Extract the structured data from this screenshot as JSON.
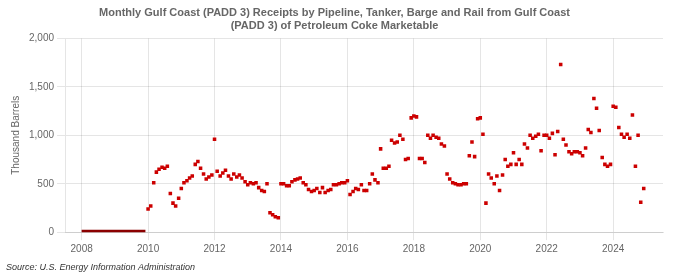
{
  "chart_data": {
    "type": "scatter",
    "title": "Monthly Gulf Coast (PADD 3) Receipts by Pipeline, Tanker, Barge and Rail from Gulf Coast\n(PADD 3) of Petroleum Coke Marketable",
    "ylabel": "Thousand Barrels",
    "annotations": [
      "Source: U.S. Energy Information Administration"
    ],
    "xlim": [
      2007.5,
      2025.5
    ],
    "xticks": [
      2008,
      2010,
      2012,
      2014,
      2016,
      2018,
      2020,
      2022,
      2024
    ],
    "ylim": [
      0,
      2000
    ],
    "yticks": [
      0,
      500,
      {
        "value": 1000,
        "label": "1,000"
      },
      {
        "value": 1500,
        "label": "1,500"
      },
      {
        "value": 2000,
        "label": "2,000"
      }
    ],
    "grid": true,
    "series": [
      {
        "type": "line",
        "color": "#8b0000",
        "line_style": "solid",
        "x": [
          2008.0,
          2008.08,
          2008.17,
          2008.25,
          2008.33,
          2008.42,
          2008.5,
          2008.58,
          2008.67,
          2008.75,
          2008.83,
          2008.92,
          2009.0,
          2009.08,
          2009.17,
          2009.25,
          2009.33,
          2009.42,
          2009.5,
          2009.58,
          2009.67,
          2009.75,
          2009.83,
          2009.92
        ],
        "values": [
          0,
          0,
          0,
          0,
          0,
          0,
          0,
          0,
          0,
          0,
          0,
          0,
          0,
          0,
          0,
          0,
          0,
          0,
          0,
          0,
          0,
          0,
          0,
          0
        ]
      },
      {
        "type": "scatter",
        "color": "#cc0000",
        "marker": "square",
        "x": [
          2010.0,
          2010.08,
          2010.17,
          2010.25,
          2010.33,
          2010.42,
          2010.5,
          2010.58,
          2010.67,
          2010.75,
          2010.83,
          2010.92,
          2011.0,
          2011.08,
          2011.17,
          2011.25,
          2011.33,
          2011.42,
          2011.5,
          2011.58,
          2011.67,
          2011.75,
          2011.83,
          2011.92,
          2012.0,
          2012.08,
          2012.17,
          2012.25,
          2012.33,
          2012.42,
          2012.5,
          2012.58,
          2012.67,
          2012.75,
          2012.83,
          2012.92,
          2013.0,
          2013.08,
          2013.17,
          2013.25,
          2013.33,
          2013.42,
          2013.5,
          2013.58,
          2013.67,
          2013.75,
          2013.83,
          2013.92,
          2014.0,
          2014.08,
          2014.17,
          2014.25,
          2014.33,
          2014.42,
          2014.5,
          2014.58,
          2014.67,
          2014.75,
          2014.83,
          2014.92,
          2015.0,
          2015.08,
          2015.17,
          2015.25,
          2015.33,
          2015.42,
          2015.5,
          2015.58,
          2015.67,
          2015.75,
          2015.83,
          2015.92,
          2016.0,
          2016.08,
          2016.17,
          2016.25,
          2016.33,
          2016.42,
          2016.5,
          2016.58,
          2016.67,
          2016.75,
          2016.83,
          2016.92,
          2017.0,
          2017.08,
          2017.17,
          2017.25,
          2017.33,
          2017.42,
          2017.5,
          2017.58,
          2017.67,
          2017.75,
          2017.83,
          2017.92,
          2018.0,
          2018.08,
          2018.17,
          2018.25,
          2018.33,
          2018.42,
          2018.5,
          2018.58,
          2018.67,
          2018.75,
          2018.83,
          2018.92,
          2019.0,
          2019.08,
          2019.17,
          2019.25,
          2019.33,
          2019.42,
          2019.5,
          2019.58,
          2019.67,
          2019.75,
          2019.83,
          2019.92,
          2020.0,
          2020.08,
          2020.17,
          2020.25,
          2020.33,
          2020.42,
          2020.5,
          2020.58,
          2020.67,
          2020.75,
          2020.83,
          2020.92,
          2021.0,
          2021.08,
          2021.17,
          2021.25,
          2021.33,
          2021.42,
          2021.5,
          2021.58,
          2021.67,
          2021.75,
          2021.83,
          2021.92,
          2022.0,
          2022.08,
          2022.17,
          2022.25,
          2022.33,
          2022.42,
          2022.5,
          2022.58,
          2022.67,
          2022.75,
          2022.83,
          2022.92,
          2023.0,
          2023.08,
          2023.17,
          2023.25,
          2023.33,
          2023.42,
          2023.5,
          2023.58,
          2023.67,
          2023.75,
          2023.83,
          2023.92,
          2024.0,
          2024.08,
          2024.17,
          2024.25,
          2024.33,
          2024.42,
          2024.5,
          2024.58,
          2024.67,
          2024.75,
          2024.83,
          2024.92
        ],
        "values": [
          240,
          270,
          510,
          620,
          650,
          670,
          660,
          680,
          400,
          300,
          270,
          350,
          450,
          510,
          530,
          560,
          580,
          700,
          730,
          660,
          600,
          550,
          570,
          590,
          960,
          630,
          580,
          610,
          640,
          580,
          550,
          600,
          570,
          590,
          560,
          520,
          490,
          510,
          500,
          510,
          460,
          430,
          420,
          500,
          200,
          180,
          160,
          150,
          500,
          500,
          480,
          480,
          520,
          540,
          550,
          560,
          510,
          490,
          440,
          420,
          430,
          450,
          410,
          460,
          410,
          430,
          440,
          490,
          490,
          500,
          510,
          510,
          530,
          390,
          420,
          450,
          440,
          490,
          430,
          430,
          500,
          600,
          540,
          510,
          860,
          660,
          660,
          680,
          950,
          920,
          930,
          1000,
          960,
          750,
          760,
          1180,
          1200,
          1190,
          760,
          760,
          720,
          1000,
          970,
          1000,
          980,
          970,
          910,
          890,
          600,
          550,
          510,
          500,
          490,
          490,
          500,
          500,
          790,
          930,
          780,
          1170,
          1180,
          1010,
          300,
          600,
          560,
          500,
          580,
          430,
          590,
          750,
          680,
          700,
          820,
          700,
          750,
          700,
          910,
          870,
          1000,
          970,
          990,
          1010,
          840,
          1000,
          1000,
          970,
          1020,
          800,
          1040,
          1730,
          960,
          900,
          830,
          810,
          830,
          830,
          820,
          790,
          870,
          1060,
          1030,
          1380,
          1280,
          1050,
          770,
          700,
          680,
          700,
          1300,
          1290,
          1080,
          1010,
          980,
          1010,
          970,
          1210,
          680,
          1000,
          310,
          450
        ]
      }
    ]
  }
}
